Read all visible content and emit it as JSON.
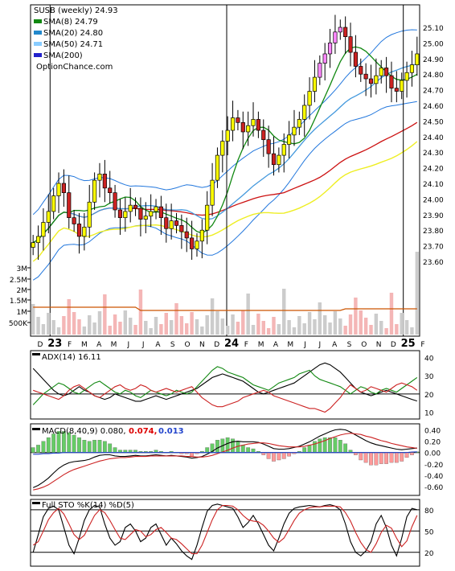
{
  "chart_data": [
    {
      "type": "candlestick",
      "panel": "price",
      "legend": [
        {
          "label": "SUSB (weekly) 24.93",
          "color": "#000000",
          "swatch": false
        },
        {
          "label": "SMA(8) 24.79",
          "color": "#118811",
          "swatch": true
        },
        {
          "label": "SMA(20) 24.80",
          "color": "#2288cc",
          "swatch": true
        },
        {
          "label": "SMA(50) 24.71",
          "color": "#88ccff",
          "swatch": true
        },
        {
          "label": "SMA(200)",
          "color": "#2222cc",
          "swatch": true
        }
      ],
      "watermark": "OptionChance.com",
      "y_ticks": [
        "25.10",
        "25.00",
        "24.90",
        "24.80",
        "24.70",
        "24.60",
        "24.50",
        "24.40",
        "24.30",
        "24.20",
        "24.10",
        "24.00",
        "23.90",
        "23.80",
        "23.70",
        "23.60"
      ],
      "ylim": [
        23.6,
        25.1
      ],
      "x_labels": [
        "D",
        "23",
        "F",
        "M",
        "A",
        "M",
        "J",
        "J",
        "A",
        "S",
        "O",
        "N",
        "D",
        "24",
        "F",
        "M",
        "A",
        "M",
        "J",
        "J",
        "A",
        "S",
        "O",
        "N",
        "D",
        "25",
        "F"
      ],
      "volume_ticks": [
        "3M",
        "2.5M",
        "2M",
        "1.5M",
        "1M",
        "500K"
      ],
      "close": [
        23.72,
        23.76,
        23.85,
        23.92,
        24.02,
        24.1,
        24.04,
        23.88,
        23.84,
        23.76,
        23.82,
        23.98,
        24.12,
        24.16,
        24.07,
        24.04,
        23.93,
        23.88,
        23.92,
        23.96,
        23.94,
        23.87,
        23.89,
        23.92,
        23.95,
        23.88,
        23.81,
        23.86,
        23.83,
        23.79,
        23.75,
        23.68,
        23.73,
        23.8,
        23.96,
        24.12,
        24.28,
        24.37,
        24.44,
        24.52,
        24.49,
        24.43,
        24.47,
        24.51,
        24.44,
        24.38,
        24.29,
        24.22,
        24.28,
        24.35,
        24.41,
        24.46,
        24.51,
        24.6,
        24.69,
        24.78,
        24.87,
        24.93,
        25.0,
        25.07,
        25.1,
        25.04,
        24.94,
        24.85,
        24.8,
        24.77,
        24.74,
        24.79,
        24.84,
        24.79,
        24.71,
        24.69,
        24.76,
        24.81,
        24.86,
        24.93
      ],
      "candle_colors": {
        "up": "#ffff00",
        "down": "#cc2222",
        "doji_highlight": "#ff88ff"
      }
    },
    {
      "type": "line",
      "panel": "adx",
      "title": "ADX(14) 16.11",
      "y_ticks": [
        "40",
        "30",
        "20",
        "10"
      ],
      "ylim": [
        8,
        42
      ],
      "series": [
        {
          "color": "#000000",
          "values": [
            34,
            31,
            28,
            25,
            22,
            20,
            19,
            20,
            22,
            24,
            22,
            21,
            19,
            18,
            17,
            18,
            20,
            19,
            18,
            17,
            16,
            16,
            17,
            18,
            19,
            18,
            17,
            18,
            19,
            20,
            21,
            22,
            23,
            25,
            27,
            29,
            30,
            31,
            30,
            29,
            28,
            27,
            25,
            23,
            21,
            20,
            21,
            22,
            23,
            24,
            25,
            26,
            28,
            30,
            32,
            34,
            36,
            37,
            36,
            34,
            32,
            29,
            26,
            23,
            21,
            20,
            19,
            20,
            21,
            22,
            21,
            20,
            19,
            18,
            17,
            16.11
          ]
        },
        {
          "color": "#118811",
          "values": [
            14,
            17,
            20,
            22,
            24,
            26,
            25,
            23,
            21,
            20,
            22,
            24,
            26,
            27,
            25,
            23,
            21,
            20,
            22,
            21,
            19,
            18,
            20,
            22,
            21,
            20,
            19,
            20,
            22,
            21,
            20,
            21,
            24,
            27,
            30,
            33,
            35,
            34,
            32,
            31,
            30,
            29,
            27,
            25,
            24,
            23,
            22,
            24,
            26,
            27,
            28,
            29,
            31,
            32,
            33,
            30,
            28,
            27,
            26,
            25,
            24,
            22,
            20,
            22,
            24,
            23,
            21,
            20,
            22,
            23,
            22,
            21,
            23,
            25,
            27,
            29
          ]
        },
        {
          "color": "#cc2222",
          "values": [
            22,
            21,
            20,
            19,
            18,
            17,
            19,
            22,
            24,
            25,
            23,
            21,
            19,
            18,
            20,
            22,
            24,
            25,
            23,
            22,
            23,
            25,
            24,
            22,
            21,
            22,
            23,
            22,
            21,
            22,
            23,
            24,
            21,
            18,
            16,
            14,
            13,
            13,
            14,
            15,
            16,
            18,
            19,
            20,
            21,
            22,
            21,
            19,
            18,
            17,
            16,
            15,
            14,
            13,
            12,
            12,
            11,
            10,
            12,
            15,
            18,
            22,
            25,
            23,
            21,
            22,
            24,
            23,
            22,
            21,
            23,
            25,
            26,
            25,
            24,
            22
          ]
        }
      ]
    },
    {
      "type": "line+histogram",
      "panel": "macd",
      "title": "MACD(8,40,9) 0.080,",
      "value_red": "0.074,",
      "value_blue": "0.013",
      "y_ticks": [
        "0.40",
        "0.20",
        "0.00",
        "-0.20",
        "-0.40",
        "-0.60"
      ],
      "ylim": [
        -0.7,
        0.45
      ],
      "series": [
        {
          "color": "#000000",
          "values": [
            -0.62,
            -0.58,
            -0.52,
            -0.45,
            -0.36,
            -0.28,
            -0.22,
            -0.18,
            -0.16,
            -0.15,
            -0.14,
            -0.12,
            -0.08,
            -0.05,
            -0.04,
            -0.04,
            -0.06,
            -0.07,
            -0.07,
            -0.06,
            -0.05,
            -0.06,
            -0.06,
            -0.05,
            -0.04,
            -0.05,
            -0.06,
            -0.05,
            -0.06,
            -0.07,
            -0.08,
            -0.1,
            -0.09,
            -0.07,
            -0.03,
            0.02,
            0.08,
            0.12,
            0.16,
            0.19,
            0.2,
            0.19,
            0.19,
            0.19,
            0.18,
            0.15,
            0.11,
            0.07,
            0.06,
            0.06,
            0.07,
            0.09,
            0.11,
            0.15,
            0.19,
            0.24,
            0.29,
            0.33,
            0.37,
            0.4,
            0.41,
            0.4,
            0.36,
            0.31,
            0.26,
            0.21,
            0.17,
            0.14,
            0.12,
            0.1,
            0.08,
            0.06,
            0.05,
            0.06,
            0.07,
            0.08
          ]
        },
        {
          "color": "#cc2222",
          "values": [
            -0.66,
            -0.64,
            -0.61,
            -0.57,
            -0.51,
            -0.45,
            -0.39,
            -0.34,
            -0.3,
            -0.27,
            -0.24,
            -0.21,
            -0.18,
            -0.15,
            -0.13,
            -0.11,
            -0.1,
            -0.09,
            -0.09,
            -0.08,
            -0.07,
            -0.07,
            -0.07,
            -0.06,
            -0.06,
            -0.06,
            -0.06,
            -0.06,
            -0.06,
            -0.06,
            -0.07,
            -0.07,
            -0.08,
            -0.08,
            -0.07,
            -0.05,
            -0.02,
            0.01,
            0.04,
            0.08,
            0.11,
            0.13,
            0.15,
            0.16,
            0.17,
            0.17,
            0.16,
            0.14,
            0.12,
            0.11,
            0.1,
            0.1,
            0.1,
            0.11,
            0.13,
            0.15,
            0.18,
            0.21,
            0.25,
            0.28,
            0.31,
            0.33,
            0.34,
            0.33,
            0.32,
            0.29,
            0.27,
            0.24,
            0.21,
            0.19,
            0.16,
            0.14,
            0.12,
            0.1,
            0.09,
            0.074
          ]
        },
        {
          "color": "#2244cc",
          "values": [
            -0.03,
            -0.03,
            -0.02,
            -0.02,
            -0.01,
            -0.01,
            0.0,
            0.0,
            0.0,
            0.0,
            0.0,
            0.0,
            0.0,
            0.0,
            0.0,
            0.0,
            0.0,
            0.0,
            0.0,
            0.0,
            0.0,
            0.0,
            0.0,
            0.0,
            0.0,
            0.0,
            0.0,
            0.0,
            0.0,
            0.0,
            0.0,
            0.0,
            0.0,
            0.0,
            0.0,
            0.0,
            0.0,
            0.0,
            0.0,
            0.0,
            0.0,
            0.0,
            0.0,
            0.0,
            0.0,
            0.0,
            0.0,
            0.0,
            0.0,
            0.0,
            0.0,
            0.0,
            0.0,
            0.0,
            0.0,
            0.0,
            0.0,
            0.0,
            0.0,
            0.0,
            0.0,
            0.0,
            0.0,
            0.0,
            0.0,
            0.0,
            0.0,
            0.0,
            0.0,
            0.0,
            0.0,
            0.0,
            0.0,
            0.0,
            0.01,
            0.013
          ]
        }
      ],
      "histogram_colors": {
        "positive": "#66cc66",
        "negative": "#ff9999"
      }
    },
    {
      "type": "line",
      "panel": "stochastic",
      "title": "Full STO %K(14) %D(5)",
      "y_ticks": [
        "80",
        "50",
        "20"
      ],
      "ylim": [
        5,
        90
      ],
      "series": [
        {
          "color": "#000000",
          "values": [
            20,
            45,
            70,
            82,
            85,
            80,
            55,
            30,
            18,
            40,
            65,
            80,
            86,
            84,
            60,
            40,
            30,
            35,
            55,
            60,
            50,
            35,
            40,
            55,
            60,
            45,
            30,
            40,
            32,
            22,
            15,
            10,
            30,
            55,
            78,
            86,
            88,
            86,
            84,
            82,
            70,
            55,
            62,
            72,
            60,
            45,
            30,
            22,
            40,
            60,
            75,
            82,
            84,
            85,
            86,
            85,
            84,
            86,
            87,
            85,
            80,
            60,
            35,
            20,
            15,
            22,
            35,
            60,
            72,
            55,
            30,
            15,
            40,
            70,
            82,
            80
          ]
        },
        {
          "color": "#cc2222",
          "values": [
            30,
            35,
            50,
            66,
            76,
            82,
            74,
            60,
            45,
            38,
            44,
            58,
            72,
            80,
            76,
            65,
            52,
            40,
            38,
            45,
            52,
            50,
            42,
            45,
            52,
            55,
            48,
            40,
            38,
            32,
            25,
            18,
            18,
            30,
            48,
            66,
            80,
            86,
            86,
            85,
            80,
            72,
            66,
            64,
            63,
            58,
            50,
            40,
            34,
            40,
            52,
            65,
            75,
            80,
            83,
            84,
            84,
            85,
            85,
            85,
            84,
            76,
            64,
            48,
            34,
            24,
            20,
            32,
            48,
            58,
            54,
            40,
            28,
            36,
            56,
            72
          ]
        }
      ]
    }
  ]
}
